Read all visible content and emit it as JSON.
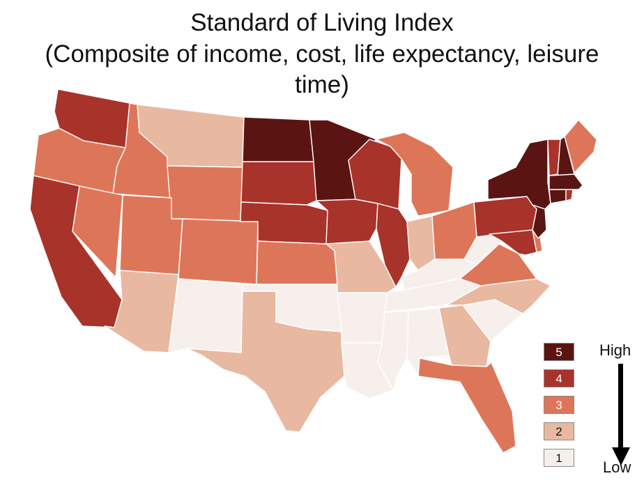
{
  "title": {
    "line1": "Standard of Living Index",
    "line2": "(Composite of income, cost, life expectancy, leisure",
    "line3": "time)"
  },
  "scale_colors": {
    "1": "#f7efec",
    "2": "#e9b8a0",
    "3": "#dd7659",
    "4": "#a8332a",
    "5": "#5a1513"
  },
  "legend": {
    "items": [
      {
        "label": "5",
        "value": 5
      },
      {
        "label": "4",
        "value": 4
      },
      {
        "label": "3",
        "value": 3
      },
      {
        "label": "2",
        "value": 2
      },
      {
        "label": "1",
        "value": 1
      }
    ],
    "high_label": "High",
    "low_label": "Low"
  },
  "states": {
    "WA": 4,
    "OR": 3,
    "CA": 4,
    "ID": 3,
    "NV": 3,
    "MT": 2,
    "WY": 3,
    "UT": 3,
    "AZ": 2,
    "CO": 3,
    "NM": 1,
    "ND": 5,
    "SD": 4,
    "NE": 4,
    "KS": 3,
    "OK": 1,
    "TX": 2,
    "MN": 5,
    "IA": 4,
    "MO": 2,
    "AR": 1,
    "LA": 1,
    "WI": 4,
    "IL": 4,
    "MI": 3,
    "IN": 2,
    "OH": 3,
    "KY": 1,
    "TN": 1,
    "MS": 1,
    "AL": 1,
    "GA": 2,
    "FL": 3,
    "SC": 1,
    "NC": 2,
    "VA": 3,
    "WV": 1,
    "PA": 4,
    "NY": 5,
    "VT": 4,
    "NH": 5,
    "ME": 3,
    "MA": 5,
    "CT": 5,
    "RI": 4,
    "NJ": 5,
    "DE": 3,
    "MD": 4
  }
}
